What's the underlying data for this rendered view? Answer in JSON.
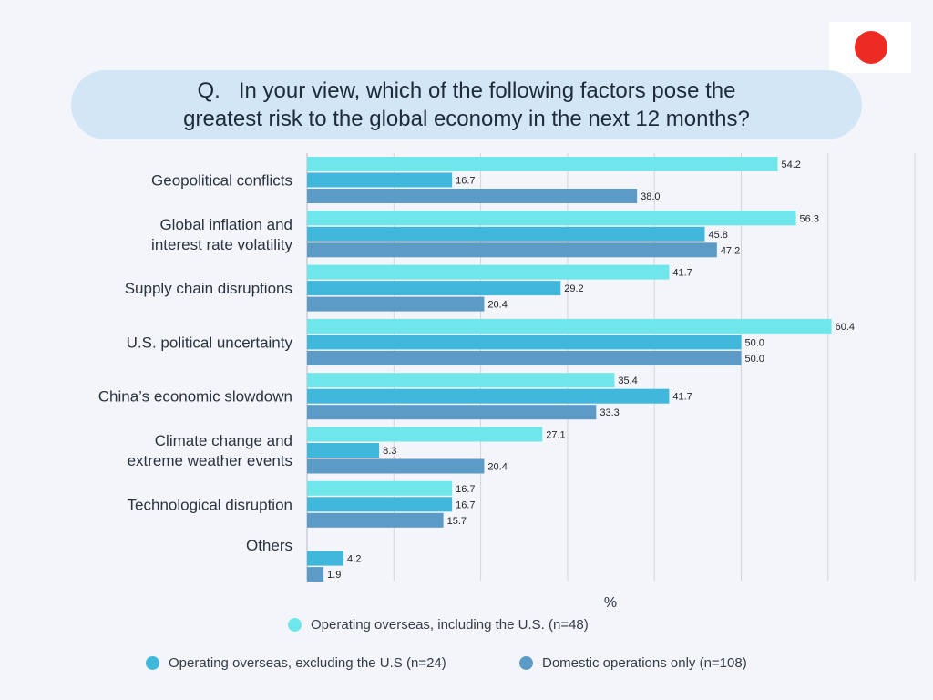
{
  "question": {
    "line1": "Q.   In your view, which of the following factors pose the",
    "line2": "greatest risk to the global economy in the next 12 months?"
  },
  "flag": {
    "background": "#ffffff",
    "disc_color": "#ee2a24"
  },
  "chart_data": {
    "type": "bar",
    "orientation": "horizontal",
    "title": "Q. In your view, which of the following factors pose the greatest risk to the global economy in the next 12 months?",
    "xlabel": "%",
    "xlim": [
      0,
      70
    ],
    "grid": true,
    "legend_position": "bottom",
    "categories": [
      [
        "Geopolitical conflicts"
      ],
      [
        "Global inflation and",
        "interest rate volatility"
      ],
      [
        "Supply chain disruptions"
      ],
      [
        "U.S. political uncertainty"
      ],
      [
        "China’s economic slowdown"
      ],
      [
        "Climate change and",
        "extreme weather events"
      ],
      [
        "Technological disruption"
      ],
      [
        "Others"
      ]
    ],
    "series": [
      {
        "name": "Operating overseas, including the U.S. (n=48)",
        "color": "#6ee6ea",
        "values": [
          54.2,
          56.3,
          41.7,
          60.4,
          35.4,
          27.1,
          16.7,
          null
        ]
      },
      {
        "name": "Operating overseas, excluding the U.S (n=24)",
        "color": "#40b8dc",
        "values": [
          16.7,
          45.8,
          29.2,
          50.0,
          41.7,
          8.3,
          16.7,
          4.2
        ]
      },
      {
        "name": "Domestic operations only (n=108)",
        "color": "#5b9bc6",
        "values": [
          38.0,
          47.2,
          20.4,
          50.0,
          33.3,
          20.4,
          15.7,
          1.9
        ]
      }
    ]
  }
}
